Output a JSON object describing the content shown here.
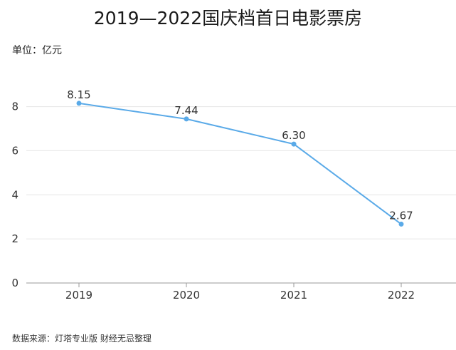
{
  "chart_data": {
    "type": "line",
    "title": "2019—2022国庆档首日电影票房",
    "unit_label": "单位：亿元",
    "source": "数据来源：灯塔专业版 财经无忌整理",
    "categories": [
      "2019",
      "2020",
      "2021",
      "2022"
    ],
    "series": [
      {
        "values": [
          8.15,
          7.44,
          6.3,
          2.67
        ]
      }
    ],
    "data_labels": [
      "8.15",
      "7.44",
      "6.30",
      "2.67"
    ],
    "y_ticks": [
      0,
      2,
      4,
      6,
      8
    ],
    "ylim": [
      0,
      9.15
    ],
    "grid": true,
    "colors": {
      "line": "#5aaae8",
      "grid": "#e6e6e6",
      "axis": "#9a9a9a"
    }
  }
}
